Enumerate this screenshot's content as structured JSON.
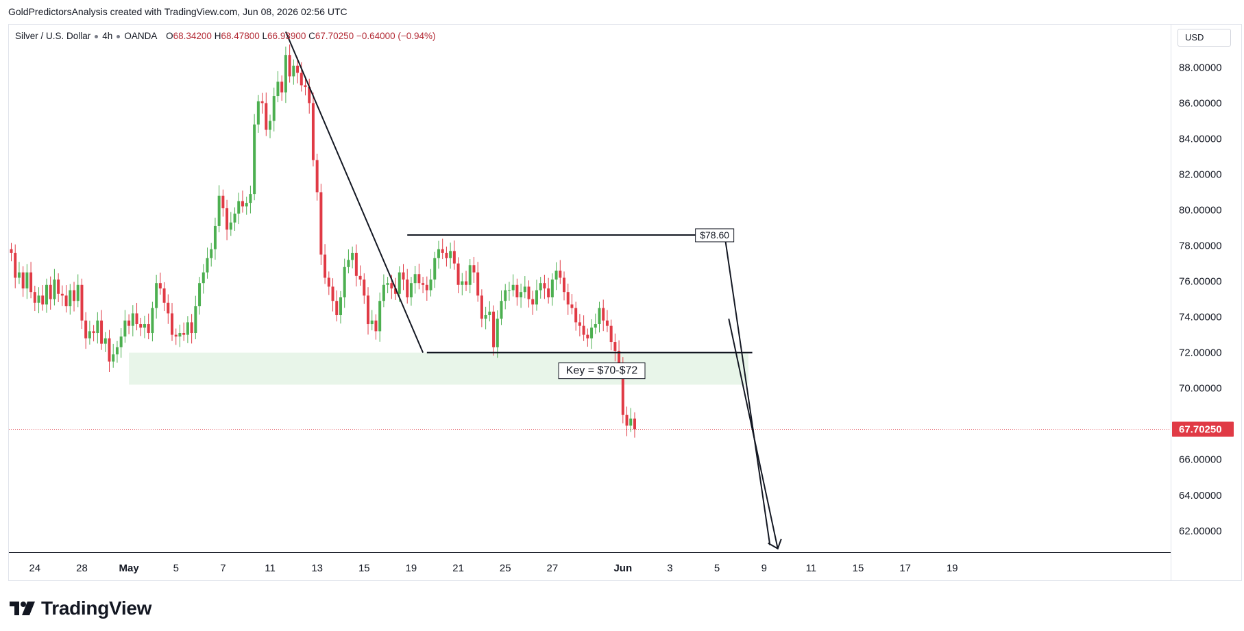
{
  "header": {
    "author_line": "GoldPredictorsAnalysis created with TradingView.com, Jun 08, 2026 02:56 UTC"
  },
  "legend": {
    "symbol": "Silver / U.S. Dollar",
    "interval": "4h",
    "exchange": "OANDA",
    "o_label": "O",
    "o_value": "68.34200",
    "h_label": "H",
    "h_value": "68.47800",
    "l_label": "L",
    "l_value": "66.93900",
    "c_label": "C",
    "c_value": "67.70250",
    "change": "−0.64000 (−0.94%)"
  },
  "currency": "USD",
  "brand": {
    "name": "TradingView"
  },
  "colors": {
    "up": "#4caf50",
    "down": "#e03a45",
    "price_line": "#e03a45",
    "zone": "#e8f5e9",
    "text": "#131722",
    "grid_border": "#e0e3eb"
  },
  "chart_data": {
    "type": "candlestick",
    "symbol": "Silver / U.S. Dollar",
    "ylim": [
      60.8,
      90.4
    ],
    "y_ticks": [
      "88.00000",
      "86.00000",
      "84.00000",
      "82.00000",
      "80.00000",
      "78.00000",
      "76.00000",
      "74.00000",
      "72.00000",
      "70.00000",
      "68.00000",
      "66.00000",
      "64.00000",
      "62.00000"
    ],
    "x_ticks": [
      {
        "label": "24",
        "bar": 6
      },
      {
        "label": "28",
        "bar": 18
      },
      {
        "label": "May",
        "bar": 30
      },
      {
        "label": "5",
        "bar": 42
      },
      {
        "label": "7",
        "bar": 54
      },
      {
        "label": "11",
        "bar": 66
      },
      {
        "label": "13",
        "bar": 78
      },
      {
        "label": "15",
        "bar": 90
      },
      {
        "label": "19",
        "bar": 102
      },
      {
        "label": "21",
        "bar": 114
      },
      {
        "label": "25",
        "bar": 126
      },
      {
        "label": "27",
        "bar": 138
      },
      {
        "label": "Jun",
        "bar": 156
      },
      {
        "label": "3",
        "bar": 168
      },
      {
        "label": "5",
        "bar": 180
      },
      {
        "label": "9",
        "bar": 192
      },
      {
        "label": "11",
        "bar": 204
      },
      {
        "label": "15",
        "bar": 216
      },
      {
        "label": "17",
        "bar": 228
      },
      {
        "label": "19",
        "bar": 240
      }
    ],
    "current_price": 67.7025,
    "current_price_label": "67.70250",
    "closes": [
      77.6,
      76.2,
      76.5,
      75.6,
      76.5,
      75.4,
      74.8,
      75.2,
      74.7,
      75.8,
      75.0,
      76.1,
      75.3,
      75.2,
      74.6,
      75.5,
      74.9,
      75.8,
      73.8,
      72.8,
      73.2,
      73.1,
      73.8,
      72.5,
      72.8,
      71.5,
      71.9,
      72.3,
      72.9,
      73.8,
      73.5,
      74.2,
      73.6,
      73.4,
      73.6,
      73.1,
      74.5,
      75.9,
      75.6,
      74.8,
      74.2,
      73.0,
      72.9,
      73.1,
      73.0,
      73.7,
      73.1,
      74.6,
      75.9,
      76.5,
      77.3,
      77.8,
      79.1,
      80.8,
      80.1,
      78.9,
      79.3,
      79.8,
      80.5,
      80.2,
      80.4,
      80.9,
      84.8,
      86.1,
      86.0,
      84.5,
      85.0,
      86.4,
      87.2,
      86.6,
      88.7,
      87.5,
      88.1,
      87.7,
      87.0,
      86.9,
      86.0,
      82.8,
      81.0,
      77.5,
      76.2,
      75.7,
      74.9,
      74.1,
      75.1,
      76.8,
      77.2,
      77.6,
      76.3,
      76.1,
      75.2,
      73.6,
      73.8,
      73.2,
      74.9,
      75.8,
      75.9,
      75.6,
      75.3,
      76.5,
      76.1,
      75.1,
      75.9,
      76.4,
      75.9,
      75.8,
      75.5,
      76.1,
      77.3,
      77.8,
      77.6,
      77.3,
      77.7,
      77.0,
      75.8,
      76.0,
      75.8,
      76.9,
      76.5,
      75.2,
      73.9,
      74.1,
      74.3,
      72.3,
      73.9,
      74.9,
      75.5,
      75.5,
      75.8,
      75.1,
      75.4,
      75.7,
      75.0,
      74.7,
      75.5,
      75.9,
      75.6,
      75.1,
      76.1,
      76.6,
      76.2,
      75.4,
      74.7,
      74.5,
      73.7,
      73.5,
      73.0,
      72.8,
      73.4,
      73.6,
      74.5,
      73.8,
      73.5,
      72.6,
      72.1,
      71.4,
      68.5,
      67.9,
      68.3,
      67.7
    ]
  },
  "annotations": {
    "resistance_label": "$78.60",
    "key_label": "Key = $70-$72"
  }
}
